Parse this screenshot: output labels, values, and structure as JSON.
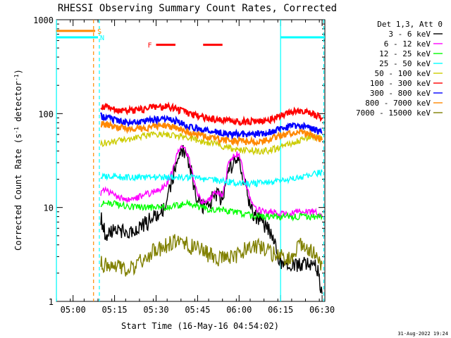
{
  "chart_data": {
    "type": "line",
    "title": "RHESSI Observing Summary Count Rates, Corrected",
    "xlabel": "Start Time (16-May-16 04:54:02)",
    "ylabel": "Corrected Count Rate (s⁻¹ detector⁻¹)",
    "ylabel_main": "Corrected Count Rate (s",
    "ylabel_sup1": "-1",
    "ylabel_mid": " detector",
    "ylabel_sup2": "-1",
    "ylabel_end": ")",
    "y_scale": "log",
    "ylim": [
      1,
      1000
    ],
    "y_ticks": [
      {
        "value": 1,
        "label": "1"
      },
      {
        "value": 10,
        "label": "10"
      },
      {
        "value": 100,
        "label": "100"
      },
      {
        "value": 1000,
        "label": "1000"
      }
    ],
    "xlim_min": [
      -0.034,
      97.0
    ],
    "x_ticks": [
      {
        "value": 6,
        "label": "05:00"
      },
      {
        "value": 21,
        "label": "05:15"
      },
      {
        "value": 36,
        "label": "05:30"
      },
      {
        "value": 51,
        "label": "05:45"
      },
      {
        "value": 66,
        "label": "06:00"
      },
      {
        "value": 81,
        "label": "06:15"
      },
      {
        "value": 96,
        "label": "06:30"
      }
    ],
    "legend_title": "Det 1,3, Att 0",
    "legend_placement": "right",
    "series": [
      {
        "name": "3 - 6 keV",
        "color": "#000000",
        "x": [
          16,
          17,
          18,
          20,
          22,
          25,
          28,
          30,
          33,
          36,
          38,
          40,
          42,
          44,
          46,
          48,
          50,
          52,
          54,
          56,
          58,
          60,
          62,
          64,
          66,
          68,
          70,
          72,
          74,
          76,
          78,
          80,
          82,
          84,
          86,
          88,
          90,
          92,
          94,
          96
        ],
        "values": [
          8,
          6,
          5,
          5.5,
          6,
          5.5,
          5,
          6,
          7,
          8,
          9,
          12,
          20,
          35,
          40,
          30,
          15,
          10,
          10,
          12,
          14,
          12,
          25,
          30,
          35,
          18,
          10,
          8,
          7,
          6,
          5,
          3,
          2.5,
          2.5,
          2.5,
          2.5,
          2.5,
          2.5,
          2.5,
          1.2
        ]
      },
      {
        "name": "6 - 12 keV",
        "color": "#ff00ff",
        "x": [
          16,
          17,
          18,
          20,
          22,
          25,
          28,
          30,
          33,
          36,
          38,
          40,
          42,
          44,
          46,
          48,
          50,
          52,
          54,
          56,
          58,
          60,
          62,
          64,
          66,
          68,
          70,
          72,
          74,
          76,
          78,
          80,
          82,
          84,
          86,
          88,
          90,
          92,
          94,
          96
        ],
        "values": [
          14,
          16,
          15,
          14,
          13,
          12,
          12,
          13,
          14,
          15,
          16,
          18,
          25,
          40,
          45,
          32,
          17,
          12,
          11,
          13,
          15,
          13,
          28,
          35,
          38,
          20,
          12,
          10,
          9,
          9,
          9,
          8.5,
          8.5,
          8.5,
          9,
          9,
          9,
          9,
          9,
          8
        ]
      },
      {
        "name": "12 - 25 keV",
        "color": "#00ff00",
        "x": [
          16,
          20,
          24,
          28,
          32,
          36,
          40,
          44,
          48,
          52,
          56,
          60,
          64,
          68,
          72,
          76,
          80,
          84,
          88,
          92,
          96
        ],
        "values": [
          11,
          11,
          10.5,
          10,
          10,
          10,
          10,
          10.5,
          11,
          10,
          9.5,
          9.5,
          9,
          8.5,
          8,
          8,
          8,
          8,
          8,
          8,
          8
        ]
      },
      {
        "name": "25 - 50 keV",
        "color": "#00ffff",
        "x": [
          16,
          20,
          24,
          28,
          32,
          36,
          40,
          44,
          48,
          52,
          56,
          60,
          64,
          68,
          72,
          76,
          80,
          84,
          88,
          92,
          96
        ],
        "values": [
          21,
          22,
          21,
          21,
          21,
          21,
          21,
          21,
          21,
          20,
          20,
          19,
          18.5,
          18,
          18,
          18.5,
          19,
          20,
          21,
          22,
          24
        ]
      },
      {
        "name": "50 - 100 keV",
        "color": "#cccc00",
        "x": [
          16,
          20,
          24,
          28,
          32,
          36,
          40,
          44,
          48,
          52,
          56,
          60,
          64,
          68,
          72,
          76,
          80,
          84,
          88,
          92,
          96
        ],
        "values": [
          48,
          50,
          52,
          55,
          58,
          60,
          60,
          58,
          55,
          50,
          48,
          45,
          42,
          41,
          40,
          40,
          43,
          47,
          52,
          56,
          54
        ]
      },
      {
        "name": "100 - 300 keV",
        "color": "#ff0000",
        "x": [
          16,
          20,
          24,
          28,
          32,
          36,
          40,
          44,
          48,
          52,
          56,
          60,
          64,
          68,
          72,
          76,
          80,
          84,
          88,
          92,
          96
        ],
        "values": [
          120,
          112,
          107,
          107,
          112,
          118,
          118,
          110,
          98,
          92,
          87,
          84,
          82,
          82,
          82,
          84,
          92,
          102,
          108,
          100,
          90
        ]
      },
      {
        "name": "300 - 800 keV",
        "color": "#0000ff",
        "x": [
          16,
          20,
          24,
          28,
          32,
          36,
          40,
          44,
          48,
          52,
          56,
          60,
          64,
          68,
          72,
          76,
          80,
          84,
          88,
          92,
          96
        ],
        "values": [
          95,
          88,
          82,
          80,
          82,
          86,
          88,
          82,
          72,
          68,
          65,
          62,
          60,
          60,
          60,
          62,
          67,
          72,
          75,
          70,
          62
        ]
      },
      {
        "name": "800 - 7000 keV",
        "color": "#ff8800",
        "x": [
          16,
          20,
          24,
          28,
          32,
          36,
          40,
          44,
          48,
          52,
          56,
          60,
          64,
          68,
          72,
          76,
          80,
          84,
          88,
          92,
          96
        ],
        "values": [
          78,
          74,
          70,
          68,
          70,
          73,
          74,
          70,
          62,
          58,
          55,
          52,
          51,
          50,
          50,
          52,
          57,
          62,
          64,
          60,
          52
        ]
      },
      {
        "name": "7000 - 15000 keV",
        "color": "#808000",
        "x": [
          16,
          20,
          24,
          28,
          32,
          36,
          40,
          44,
          48,
          52,
          56,
          60,
          64,
          68,
          72,
          76,
          80,
          84,
          88,
          92,
          96
        ],
        "values": [
          2.5,
          2.5,
          2.2,
          2.2,
          3,
          3.5,
          4,
          4.5,
          4,
          3.5,
          3,
          2.8,
          3,
          3.5,
          4,
          3.5,
          3,
          2.8,
          4,
          3.5,
          2.5
        ]
      }
    ],
    "top_markers": [
      {
        "label": "S",
        "color": "#ff8800",
        "x_start": 0,
        "x_end": 14,
        "y": 760
      },
      {
        "label": "N",
        "color": "#00ffff",
        "x_start": 0,
        "x_end": 15,
        "y": 650
      },
      {
        "label": "F",
        "color": "#ff0000",
        "segments": [
          [
            36,
            43
          ],
          [
            53,
            60
          ]
        ],
        "y": 540
      },
      {
        "label": "",
        "color": "#00ffff",
        "x_start": 81,
        "x_end": 97,
        "y": 650
      }
    ],
    "vertical_lines": [
      {
        "x": 0,
        "color": "#00ffff",
        "style": "solid"
      },
      {
        "x": 13.4,
        "color": "#ff8800",
        "style": "dashed"
      },
      {
        "x": 15.5,
        "color": "#00ffff",
        "style": "dashed"
      },
      {
        "x": 81,
        "color": "#00ffff",
        "style": "solid"
      },
      {
        "x": 96.6,
        "color": "#00ffff",
        "style": "dashed"
      }
    ],
    "grid": false,
    "footer_timestamp": "31-Aug-2022 19:24"
  }
}
